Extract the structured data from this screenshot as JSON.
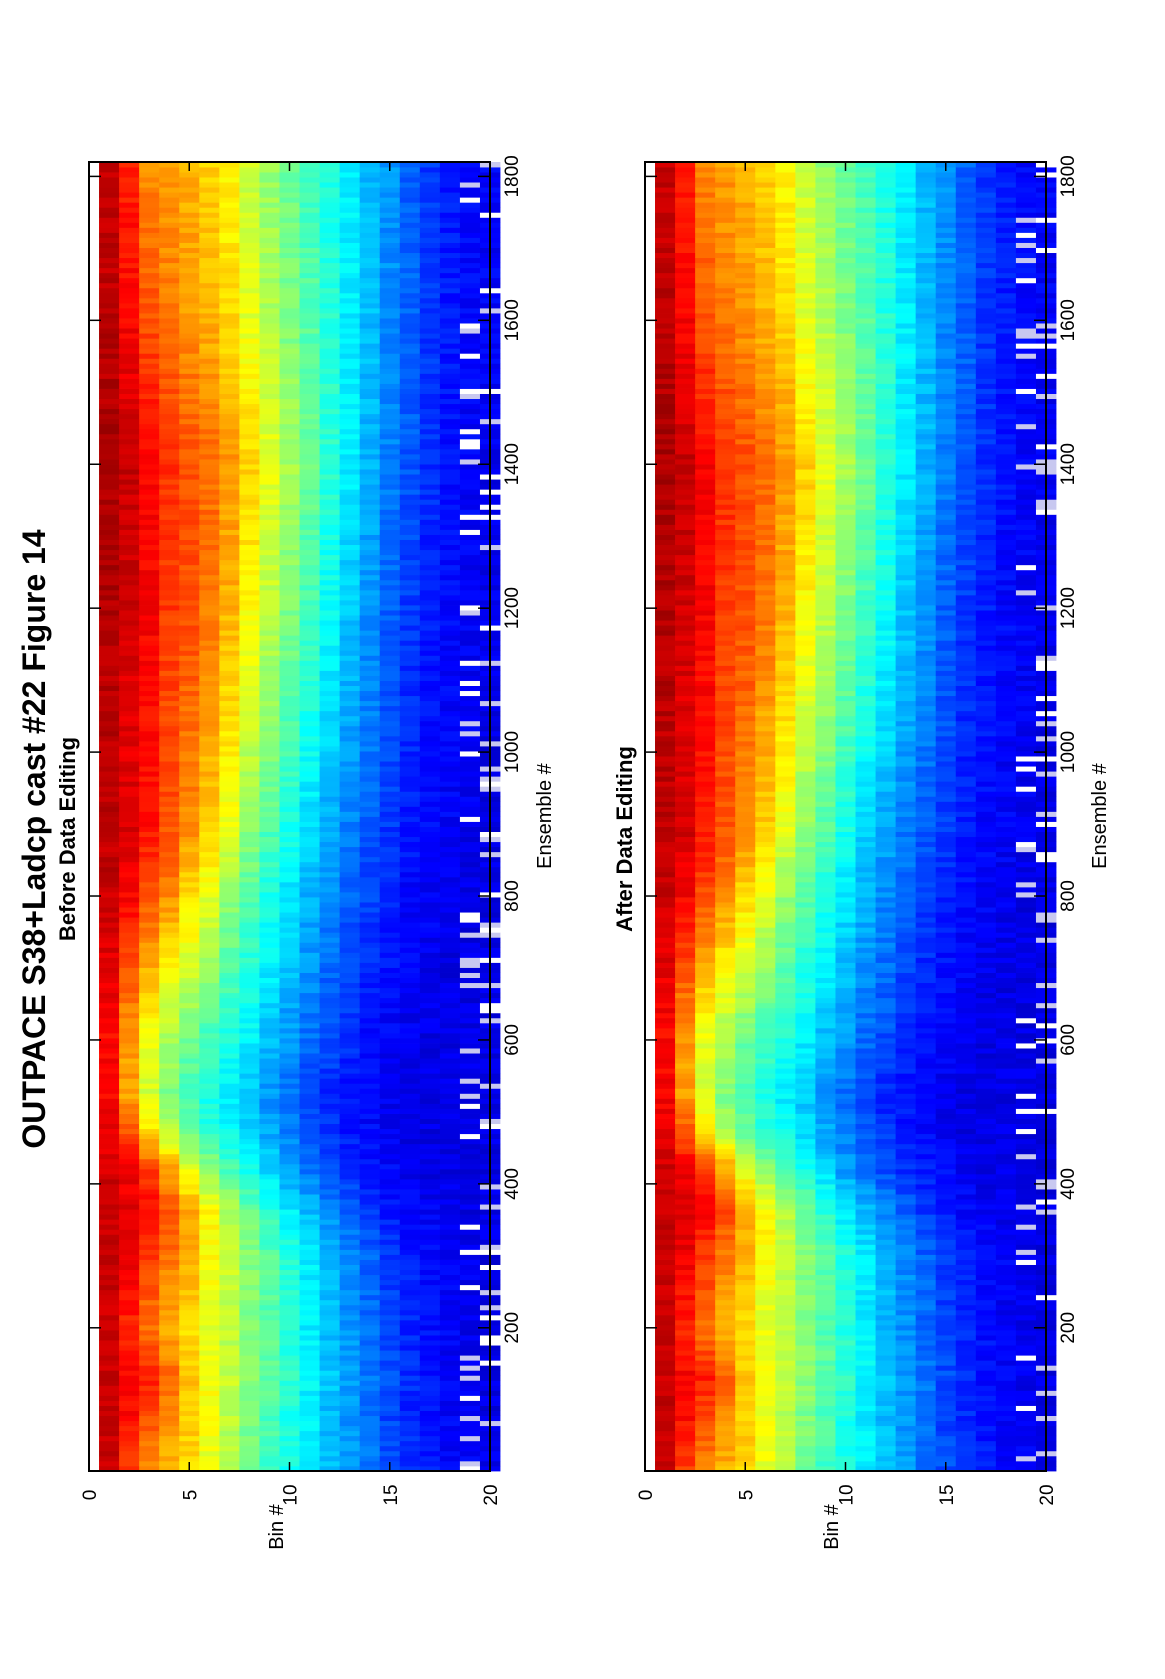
{
  "figure": {
    "title": "OUTPACE S38+Ladcp cast #22  Figure 14"
  },
  "chart_data": [
    {
      "type": "heatmap",
      "title": "Before Data Editing",
      "xlabel": "Ensemble #",
      "ylabel": "Bin #",
      "xlim": [
        1,
        1820
      ],
      "ylim": [
        0,
        20
      ],
      "xticks": [
        200,
        400,
        600,
        800,
        1000,
        1200,
        1400,
        1600,
        1800
      ],
      "yticks": [
        0,
        5,
        10,
        15,
        20
      ],
      "colormap": "jet",
      "value_range": [
        0,
        1
      ],
      "bins": [
        1,
        20
      ],
      "x_nodes": [
        1,
        80,
        130,
        200,
        300,
        360,
        420,
        470,
        520,
        600,
        700,
        800,
        900,
        1000,
        1200,
        1400,
        1600,
        1820
      ],
      "row_profiles": [
        [
          0.92,
          0.93,
          0.93,
          0.92,
          0.93,
          0.93,
          0.92,
          0.9,
          0.88,
          0.87,
          0.9,
          0.93,
          0.94,
          0.94,
          0.95,
          0.96,
          0.94,
          0.93
        ],
        [
          0.82,
          0.87,
          0.88,
          0.84,
          0.89,
          0.91,
          0.88,
          0.8,
          0.72,
          0.72,
          0.8,
          0.88,
          0.92,
          0.9,
          0.92,
          0.93,
          0.88,
          0.84
        ],
        [
          0.74,
          0.8,
          0.85,
          0.76,
          0.82,
          0.87,
          0.82,
          0.66,
          0.58,
          0.6,
          0.7,
          0.8,
          0.86,
          0.86,
          0.88,
          0.88,
          0.8,
          0.74
        ],
        [
          0.7,
          0.74,
          0.78,
          0.7,
          0.76,
          0.8,
          0.72,
          0.56,
          0.5,
          0.54,
          0.63,
          0.74,
          0.8,
          0.8,
          0.82,
          0.83,
          0.76,
          0.72
        ],
        [
          0.66,
          0.68,
          0.68,
          0.66,
          0.7,
          0.72,
          0.6,
          0.48,
          0.44,
          0.48,
          0.58,
          0.66,
          0.74,
          0.76,
          0.8,
          0.8,
          0.73,
          0.7
        ],
        [
          0.6,
          0.61,
          0.62,
          0.6,
          0.62,
          0.63,
          0.52,
          0.42,
          0.4,
          0.44,
          0.52,
          0.6,
          0.68,
          0.7,
          0.76,
          0.77,
          0.7,
          0.67
        ],
        [
          0.55,
          0.56,
          0.57,
          0.56,
          0.57,
          0.55,
          0.45,
          0.38,
          0.36,
          0.4,
          0.46,
          0.52,
          0.6,
          0.64,
          0.7,
          0.73,
          0.66,
          0.63
        ],
        [
          0.49,
          0.5,
          0.51,
          0.5,
          0.51,
          0.48,
          0.4,
          0.34,
          0.32,
          0.36,
          0.41,
          0.46,
          0.52,
          0.56,
          0.63,
          0.67,
          0.6,
          0.57
        ],
        [
          0.44,
          0.45,
          0.47,
          0.46,
          0.46,
          0.42,
          0.34,
          0.29,
          0.27,
          0.31,
          0.36,
          0.4,
          0.46,
          0.5,
          0.56,
          0.6,
          0.55,
          0.52
        ],
        [
          0.4,
          0.4,
          0.42,
          0.41,
          0.41,
          0.36,
          0.28,
          0.25,
          0.23,
          0.27,
          0.31,
          0.35,
          0.4,
          0.44,
          0.5,
          0.54,
          0.5,
          0.48
        ],
        [
          0.36,
          0.36,
          0.37,
          0.36,
          0.36,
          0.31,
          0.24,
          0.21,
          0.19,
          0.23,
          0.27,
          0.3,
          0.34,
          0.38,
          0.44,
          0.48,
          0.46,
          0.44
        ],
        [
          0.32,
          0.31,
          0.32,
          0.31,
          0.3,
          0.26,
          0.2,
          0.18,
          0.16,
          0.2,
          0.23,
          0.26,
          0.29,
          0.33,
          0.38,
          0.42,
          0.41,
          0.4
        ],
        [
          0.28,
          0.27,
          0.28,
          0.27,
          0.26,
          0.22,
          0.17,
          0.15,
          0.14,
          0.17,
          0.19,
          0.22,
          0.25,
          0.28,
          0.32,
          0.36,
          0.36,
          0.36
        ],
        [
          0.24,
          0.23,
          0.24,
          0.23,
          0.22,
          0.18,
          0.15,
          0.13,
          0.12,
          0.14,
          0.16,
          0.19,
          0.21,
          0.24,
          0.27,
          0.3,
          0.31,
          0.31
        ],
        [
          0.2,
          0.19,
          0.2,
          0.19,
          0.18,
          0.15,
          0.13,
          0.11,
          0.11,
          0.12,
          0.14,
          0.16,
          0.18,
          0.2,
          0.22,
          0.25,
          0.26,
          0.27
        ],
        [
          0.17,
          0.16,
          0.17,
          0.16,
          0.15,
          0.13,
          0.11,
          0.1,
          0.1,
          0.11,
          0.12,
          0.13,
          0.15,
          0.16,
          0.18,
          0.21,
          0.22,
          0.22
        ],
        [
          0.15,
          0.14,
          0.14,
          0.14,
          0.13,
          0.12,
          0.1,
          0.1,
          0.1,
          0.1,
          0.11,
          0.12,
          0.13,
          0.14,
          0.15,
          0.17,
          0.18,
          0.18
        ],
        [
          0.13,
          0.12,
          0.12,
          0.12,
          0.12,
          0.11,
          0.1,
          0.1,
          0.1,
          0.1,
          0.1,
          0.11,
          0.12,
          0.12,
          0.13,
          0.14,
          0.15,
          0.15
        ],
        [
          0.12,
          0.11,
          0.11,
          0.11,
          0.11,
          0.1,
          0.1,
          0.1,
          0.1,
          0.1,
          0.1,
          0.1,
          0.11,
          0.11,
          0.12,
          0.12,
          0.13,
          0.13
        ],
        [
          0.11,
          0.1,
          0.1,
          0.1,
          0.1,
          0.1,
          0.1,
          0.1,
          0.1,
          0.1,
          0.1,
          0.1,
          0.1,
          0.1,
          0.11,
          0.11,
          0.12,
          0.12
        ]
      ],
      "dropout_bins": [
        19,
        20
      ],
      "dropout_fraction": 0.18
    },
    {
      "type": "heatmap",
      "title": "After Data Editing",
      "xlabel": "Ensemble #",
      "ylabel": "Bin #",
      "xlim": [
        1,
        1820
      ],
      "ylim": [
        0,
        20
      ],
      "xticks": [
        200,
        400,
        600,
        800,
        1000,
        1200,
        1400,
        1600,
        1800
      ],
      "yticks": [
        0,
        5,
        10,
        15,
        20
      ],
      "colormap": "jet",
      "value_range": [
        0,
        1
      ],
      "bins": [
        1,
        20
      ],
      "x_nodes": [
        1,
        80,
        130,
        200,
        300,
        360,
        420,
        470,
        520,
        600,
        700,
        800,
        900,
        1000,
        1200,
        1400,
        1600,
        1820
      ],
      "row_profiles": [
        [
          0.92,
          0.93,
          0.93,
          0.92,
          0.93,
          0.93,
          0.92,
          0.9,
          0.88,
          0.87,
          0.9,
          0.93,
          0.94,
          0.94,
          0.95,
          0.96,
          0.94,
          0.93
        ],
        [
          0.82,
          0.87,
          0.88,
          0.84,
          0.89,
          0.91,
          0.88,
          0.8,
          0.72,
          0.72,
          0.8,
          0.88,
          0.92,
          0.9,
          0.92,
          0.93,
          0.88,
          0.84
        ],
        [
          0.74,
          0.8,
          0.85,
          0.76,
          0.82,
          0.87,
          0.82,
          0.66,
          0.58,
          0.6,
          0.7,
          0.8,
          0.86,
          0.86,
          0.88,
          0.88,
          0.8,
          0.74
        ],
        [
          0.7,
          0.74,
          0.78,
          0.7,
          0.76,
          0.8,
          0.72,
          0.56,
          0.5,
          0.54,
          0.63,
          0.74,
          0.8,
          0.8,
          0.82,
          0.83,
          0.76,
          0.72
        ],
        [
          0.66,
          0.68,
          0.68,
          0.66,
          0.7,
          0.72,
          0.6,
          0.48,
          0.44,
          0.48,
          0.58,
          0.66,
          0.74,
          0.76,
          0.8,
          0.8,
          0.73,
          0.7
        ],
        [
          0.6,
          0.61,
          0.62,
          0.6,
          0.62,
          0.63,
          0.52,
          0.42,
          0.4,
          0.44,
          0.52,
          0.6,
          0.68,
          0.7,
          0.76,
          0.77,
          0.7,
          0.67
        ],
        [
          0.55,
          0.56,
          0.57,
          0.56,
          0.57,
          0.55,
          0.45,
          0.38,
          0.36,
          0.4,
          0.46,
          0.52,
          0.6,
          0.64,
          0.7,
          0.73,
          0.66,
          0.63
        ],
        [
          0.49,
          0.5,
          0.51,
          0.5,
          0.51,
          0.48,
          0.4,
          0.34,
          0.32,
          0.36,
          0.41,
          0.46,
          0.52,
          0.56,
          0.63,
          0.67,
          0.6,
          0.57
        ],
        [
          0.44,
          0.45,
          0.47,
          0.46,
          0.46,
          0.42,
          0.34,
          0.29,
          0.27,
          0.31,
          0.36,
          0.4,
          0.46,
          0.5,
          0.56,
          0.6,
          0.55,
          0.52
        ],
        [
          0.4,
          0.4,
          0.42,
          0.41,
          0.41,
          0.36,
          0.28,
          0.25,
          0.23,
          0.27,
          0.31,
          0.35,
          0.4,
          0.44,
          0.5,
          0.54,
          0.5,
          0.48
        ],
        [
          0.36,
          0.36,
          0.37,
          0.36,
          0.36,
          0.31,
          0.24,
          0.21,
          0.19,
          0.23,
          0.27,
          0.3,
          0.34,
          0.38,
          0.44,
          0.48,
          0.46,
          0.44
        ],
        [
          0.32,
          0.31,
          0.32,
          0.31,
          0.3,
          0.26,
          0.2,
          0.18,
          0.16,
          0.2,
          0.23,
          0.26,
          0.29,
          0.33,
          0.38,
          0.42,
          0.41,
          0.4
        ],
        [
          0.28,
          0.27,
          0.28,
          0.27,
          0.26,
          0.22,
          0.17,
          0.15,
          0.14,
          0.17,
          0.19,
          0.22,
          0.25,
          0.28,
          0.32,
          0.36,
          0.36,
          0.36
        ],
        [
          0.24,
          0.23,
          0.24,
          0.23,
          0.22,
          0.18,
          0.15,
          0.13,
          0.12,
          0.14,
          0.16,
          0.19,
          0.21,
          0.24,
          0.27,
          0.3,
          0.31,
          0.31
        ],
        [
          0.2,
          0.19,
          0.2,
          0.19,
          0.18,
          0.15,
          0.13,
          0.11,
          0.11,
          0.12,
          0.14,
          0.16,
          0.18,
          0.2,
          0.22,
          0.25,
          0.26,
          0.27
        ],
        [
          0.17,
          0.16,
          0.17,
          0.16,
          0.15,
          0.13,
          0.11,
          0.1,
          0.1,
          0.11,
          0.12,
          0.13,
          0.15,
          0.16,
          0.18,
          0.21,
          0.22,
          0.22
        ],
        [
          0.15,
          0.14,
          0.14,
          0.14,
          0.13,
          0.12,
          0.1,
          0.1,
          0.1,
          0.1,
          0.11,
          0.12,
          0.13,
          0.14,
          0.15,
          0.17,
          0.18,
          0.18
        ],
        [
          0.13,
          0.12,
          0.12,
          0.12,
          0.12,
          0.11,
          0.1,
          0.1,
          0.1,
          0.1,
          0.1,
          0.11,
          0.12,
          0.12,
          0.13,
          0.14,
          0.15,
          0.15
        ],
        [
          0.12,
          0.11,
          0.11,
          0.11,
          0.11,
          0.1,
          0.1,
          0.1,
          0.1,
          0.1,
          0.1,
          0.1,
          0.11,
          0.11,
          0.12,
          0.12,
          0.13,
          0.13
        ],
        [
          0.11,
          0.1,
          0.1,
          0.1,
          0.1,
          0.1,
          0.1,
          0.1,
          0.1,
          0.1,
          0.1,
          0.1,
          0.1,
          0.1,
          0.11,
          0.11,
          0.12,
          0.12
        ]
      ],
      "dropout_bins": [
        19,
        20
      ],
      "dropout_fraction": 0.14
    }
  ]
}
